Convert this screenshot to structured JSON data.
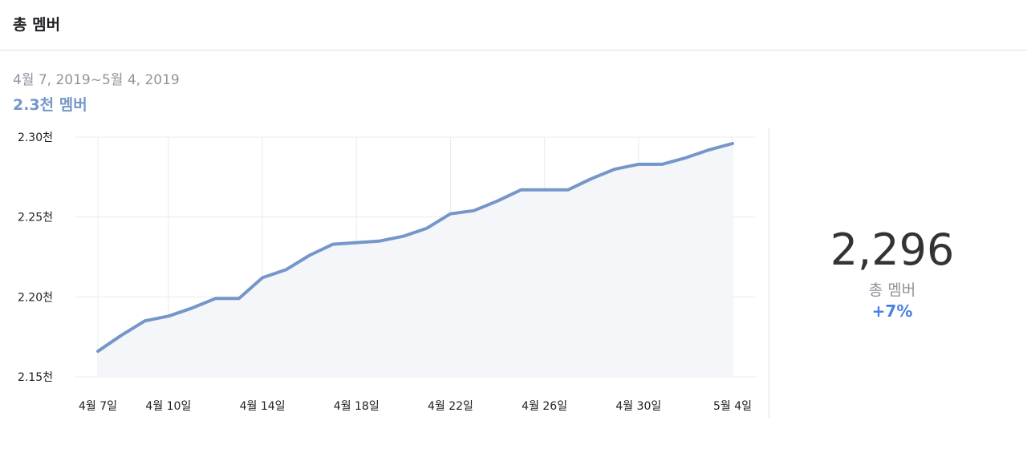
{
  "header": {
    "title": "총 멤버"
  },
  "range_label": "4월 7, 2019~5월 4, 2019",
  "summary_label": "2.3천 멤버",
  "stat": {
    "value": "2,296",
    "label": "총 멤버",
    "change": "+7%"
  },
  "colors": {
    "line": "#7596c8",
    "area": "#f4f6fa",
    "grid": "#e9ebee",
    "accent": "#4a80e3"
  },
  "chart_data": {
    "type": "area",
    "title": "",
    "xlabel": "",
    "ylabel": "",
    "ylim": [
      2150,
      2300
    ],
    "y_ticks": [
      {
        "value": 2300,
        "label": "2.30천"
      },
      {
        "value": 2250,
        "label": "2.25천"
      },
      {
        "value": 2200,
        "label": "2.20천"
      },
      {
        "value": 2150,
        "label": "2.15천"
      }
    ],
    "x_ticks": [
      {
        "date": "2019-04-07",
        "label": "4월 7일"
      },
      {
        "date": "2019-04-10",
        "label": "4월 10일"
      },
      {
        "date": "2019-04-14",
        "label": "4월 14일"
      },
      {
        "date": "2019-04-18",
        "label": "4월 18일"
      },
      {
        "date": "2019-04-22",
        "label": "4월 22일"
      },
      {
        "date": "2019-04-26",
        "label": "4월 26일"
      },
      {
        "date": "2019-04-30",
        "label": "4월 30일"
      },
      {
        "date": "2019-05-04",
        "label": "5월 4일"
      }
    ],
    "grid": true,
    "series": [
      {
        "x": [
          "2019-04-07",
          "2019-04-08",
          "2019-04-09",
          "2019-04-10",
          "2019-04-11",
          "2019-04-12",
          "2019-04-13",
          "2019-04-14",
          "2019-04-15",
          "2019-04-16",
          "2019-04-17",
          "2019-04-18",
          "2019-04-19",
          "2019-04-20",
          "2019-04-21",
          "2019-04-22",
          "2019-04-23",
          "2019-04-24",
          "2019-04-25",
          "2019-04-26",
          "2019-04-27",
          "2019-04-28",
          "2019-04-29",
          "2019-04-30",
          "2019-05-01",
          "2019-05-02",
          "2019-05-03",
          "2019-05-04"
        ],
        "values": [
          2166,
          2176,
          2185,
          2188,
          2193,
          2199,
          2199,
          2212,
          2217,
          2226,
          2233,
          2234,
          2235,
          2238,
          2243,
          2252,
          2254,
          2260,
          2267,
          2267,
          2267,
          2274,
          2280,
          2283,
          2283,
          2287,
          2292,
          2296
        ]
      }
    ]
  }
}
